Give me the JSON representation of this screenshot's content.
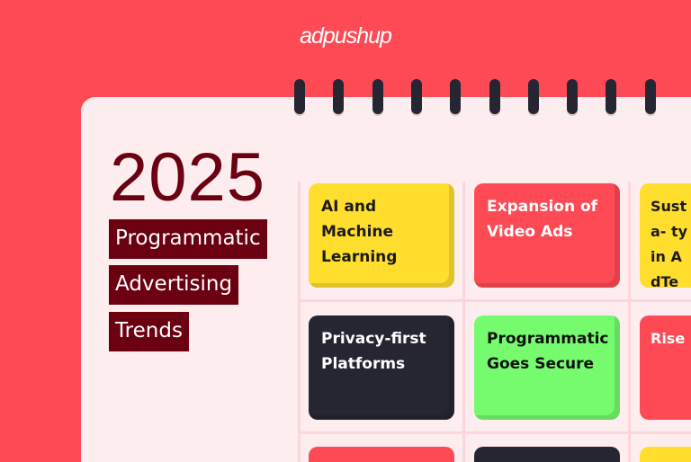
{
  "brand": "adpushup",
  "heading": {
    "year": "2025",
    "lines": [
      "Programmatic",
      "Advertising",
      "Trends"
    ]
  },
  "colors": {
    "background": "#fe4a55",
    "sheet": "#fdedef",
    "tag": "#6a0010",
    "yellow": "#ffde2e",
    "red": "#fe4a55",
    "dark": "#262532",
    "green": "#76fb6f"
  },
  "tiles": [
    {
      "label": "AI and Machine Learning",
      "color": "yellow"
    },
    {
      "label": "Expansion of Video Ads",
      "color": "red"
    },
    {
      "label": "Susta- ty in AdTe",
      "color": "yellow"
    },
    {
      "label": "Privacy-first Platforms",
      "color": "dark"
    },
    {
      "label": "Programmatic Goes Secure",
      "color": "green"
    },
    {
      "label": "Rise",
      "color": "red"
    },
    {
      "label": "",
      "color": "red"
    },
    {
      "label": "",
      "color": "dark"
    },
    {
      "label": "",
      "color": "yellow"
    }
  ]
}
